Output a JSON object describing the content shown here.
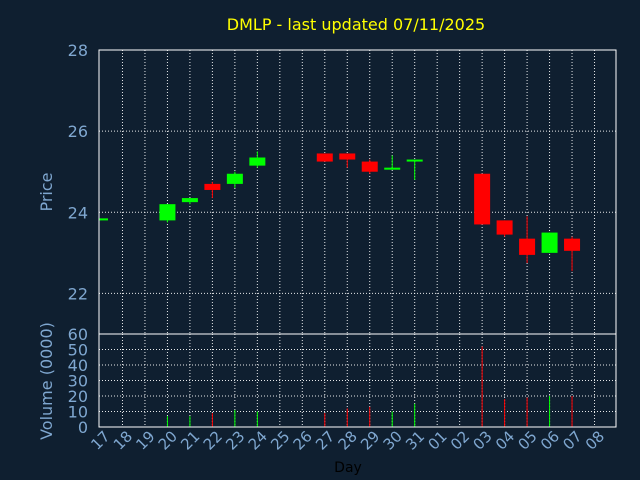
{
  "chart_data": {
    "type": "candlestick",
    "title": "DMLP - last updated 07/11/2025",
    "xlabel": "Day",
    "ylabel": "Price",
    "volume_label": "Volume (0000)",
    "x_ticks": [
      "17",
      "18",
      "19",
      "20",
      "21",
      "22",
      "23",
      "24",
      "25",
      "26",
      "27",
      "28",
      "29",
      "30",
      "31",
      "01",
      "02",
      "03",
      "04",
      "05",
      "06",
      "07",
      "08"
    ],
    "price_ylim": [
      21,
      28
    ],
    "price_yticks": [
      22,
      24,
      26,
      28
    ],
    "volume_ylim": [
      0,
      60
    ],
    "volume_yticks": [
      0,
      10,
      20,
      30,
      40,
      50,
      60
    ],
    "grid": true,
    "up_color": "#00ff00",
    "down_color": "#ff0000",
    "candles": [
      {
        "day": "17",
        "open": 23.8,
        "high": 23.85,
        "low": 23.8,
        "close": 23.85,
        "volume": 0
      },
      {
        "day": "20",
        "open": 23.8,
        "high": 24.2,
        "low": 23.75,
        "close": 24.2,
        "volume": 7
      },
      {
        "day": "21",
        "open": 24.25,
        "high": 24.35,
        "low": 24.2,
        "close": 24.35,
        "volume": 7
      },
      {
        "day": "22",
        "open": 24.7,
        "high": 24.75,
        "low": 24.35,
        "close": 24.55,
        "volume": 9
      },
      {
        "day": "23",
        "open": 24.7,
        "high": 25.0,
        "low": 24.6,
        "close": 24.95,
        "volume": 11
      },
      {
        "day": "24",
        "open": 25.15,
        "high": 25.5,
        "low": 25.1,
        "close": 25.35,
        "volume": 10
      },
      {
        "day": "27",
        "open": 25.45,
        "high": 25.45,
        "low": 25.25,
        "close": 25.25,
        "volume": 9
      },
      {
        "day": "28",
        "open": 25.45,
        "high": 25.45,
        "low": 25.1,
        "close": 25.3,
        "volume": 12
      },
      {
        "day": "29",
        "open": 25.25,
        "high": 25.3,
        "low": 24.95,
        "close": 25.0,
        "volume": 13
      },
      {
        "day": "30",
        "open": 25.05,
        "high": 25.4,
        "low": 25.05,
        "close": 25.1,
        "volume": 10
      },
      {
        "day": "31",
        "open": 25.25,
        "high": 25.3,
        "low": 24.8,
        "close": 25.3,
        "volume": 15
      },
      {
        "day": "03",
        "open": 24.95,
        "high": 24.95,
        "low": 23.7,
        "close": 23.7,
        "volume": 52
      },
      {
        "day": "04",
        "open": 23.8,
        "high": 23.8,
        "low": 23.4,
        "close": 23.45,
        "volume": 18
      },
      {
        "day": "05",
        "open": 23.35,
        "high": 23.9,
        "low": 22.75,
        "close": 22.95,
        "volume": 19
      },
      {
        "day": "06",
        "open": 23.0,
        "high": 23.5,
        "low": 23.0,
        "close": 23.5,
        "volume": 20
      },
      {
        "day": "07",
        "open": 23.35,
        "high": 23.4,
        "low": 22.55,
        "close": 23.05,
        "volume": 20
      }
    ]
  }
}
